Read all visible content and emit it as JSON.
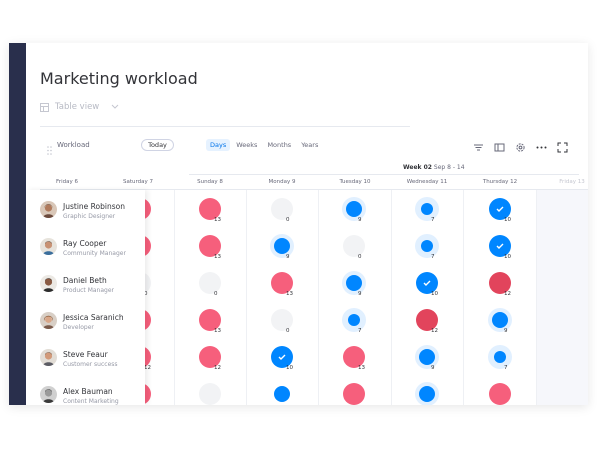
{
  "title": "Marketing workload",
  "view": {
    "label": "Table view",
    "icon": "table-icon"
  },
  "toolbar": {
    "workload_label": "Workload",
    "today_label": "Today",
    "zoom_tabs": [
      "Days",
      "Weeks",
      "Months",
      "Years"
    ],
    "active_zoom": "Days",
    "icons": [
      "filter-icon",
      "panel-icon",
      "settings-icon",
      "more-icon",
      "fullscreen-icon"
    ]
  },
  "week": {
    "prefix": "Week 02",
    "range": "Sep 8 - 14"
  },
  "days": [
    "Friday 6",
    "Saturday 7",
    "Sunday 8",
    "Monday 9",
    "Tuesday 10",
    "Wednesday 11",
    "Thursday 12",
    "Friday 13"
  ],
  "colors": {
    "overload": "#f65f7c",
    "full": "#e2445c",
    "partial": "#0086ff",
    "halo": "#e1f0ff",
    "empty": "#f2f3f5",
    "sidebar": "#292f4c",
    "accent": "#0073ea"
  },
  "people": [
    {
      "name": "Justine Robinson",
      "role": "Graphic Designer"
    },
    {
      "name": "Ray Cooper",
      "role": "Community Manager"
    },
    {
      "name": "Daniel Beth",
      "role": "Product Manager"
    },
    {
      "name": "Jessica Saranich",
      "role": "Developer"
    },
    {
      "name": "Steve Feaur",
      "role": "Customer success"
    },
    {
      "name": "Alex Bauman",
      "role": "Content Marketing"
    }
  ],
  "grid": [
    [
      {
        "s": "pink",
        "n": ""
      },
      {
        "s": "pink",
        "n": "13"
      },
      {
        "s": "empty",
        "n": "0"
      },
      {
        "s": "blue-mid-halo",
        "n": "9"
      },
      {
        "s": "blue-sm-halo",
        "n": "7"
      },
      {
        "s": "blue-check",
        "n": "10"
      }
    ],
    [
      {
        "s": "pink",
        "n": ""
      },
      {
        "s": "pink",
        "n": "13"
      },
      {
        "s": "blue-mid-halo",
        "n": "9"
      },
      {
        "s": "empty",
        "n": "0"
      },
      {
        "s": "blue-sm-halo",
        "n": "7"
      },
      {
        "s": "blue-check",
        "n": "10"
      }
    ],
    [
      {
        "s": "empty",
        "n": "0"
      },
      {
        "s": "empty",
        "n": "0"
      },
      {
        "s": "pink",
        "n": "13"
      },
      {
        "s": "blue-mid-halo",
        "n": "9"
      },
      {
        "s": "blue-check",
        "n": "10"
      },
      {
        "s": "red",
        "n": "12"
      }
    ],
    [
      {
        "s": "pink",
        "n": ""
      },
      {
        "s": "pink",
        "n": "13"
      },
      {
        "s": "empty",
        "n": "0"
      },
      {
        "s": "blue-sm-halo",
        "n": "7"
      },
      {
        "s": "red",
        "n": "12"
      },
      {
        "s": "blue-mid-halo",
        "n": "9"
      }
    ],
    [
      {
        "s": "pink",
        "n": "12"
      },
      {
        "s": "pink",
        "n": "12"
      },
      {
        "s": "blue-check",
        "n": "10"
      },
      {
        "s": "pink",
        "n": "13"
      },
      {
        "s": "blue-mid-halo",
        "n": "9"
      },
      {
        "s": "blue-sm-halo",
        "n": "7"
      }
    ],
    [
      {
        "s": "pink",
        "n": ""
      },
      {
        "s": "empty",
        "n": ""
      },
      {
        "s": "blue-mid",
        "n": ""
      },
      {
        "s": "pink",
        "n": ""
      },
      {
        "s": "blue-mid-halo",
        "n": ""
      },
      {
        "s": "pink",
        "n": ""
      }
    ]
  ]
}
